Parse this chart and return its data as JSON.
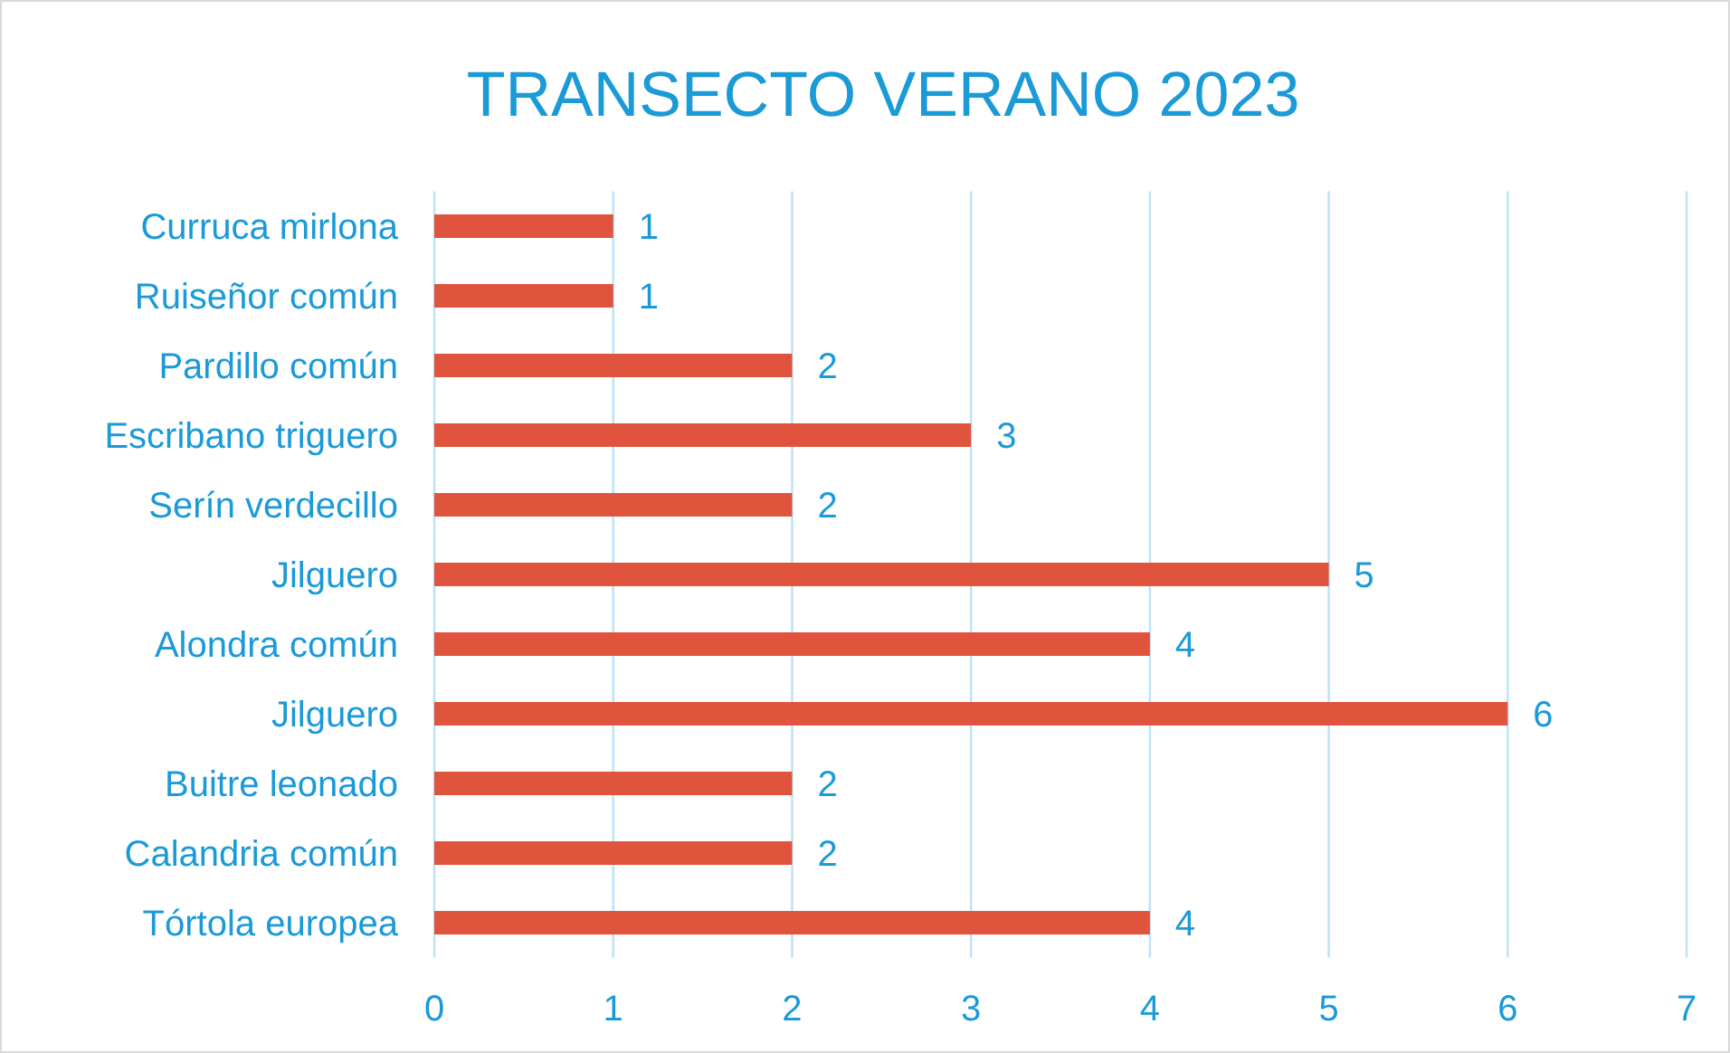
{
  "chart_data": {
    "type": "bar",
    "title": "TRANSECTO VERANO 2023",
    "orientation": "horizontal",
    "categories": [
      "Curruca mirlona",
      "Ruiseñor común",
      "Pardillo común",
      "Escribano triguero",
      "Serín verdecillo",
      "Jilguero",
      "Alondra común",
      "Jilguero",
      "Buitre leonado",
      "Calandria común",
      "Tórtola europea"
    ],
    "values": [
      1,
      1,
      2,
      3,
      2,
      5,
      4,
      6,
      2,
      2,
      4
    ],
    "color": "#e0533d",
    "xlim": [
      0,
      7
    ],
    "xticks": [
      0,
      1,
      2,
      3,
      4,
      5,
      6,
      7
    ],
    "grid": "x",
    "data_labels": true
  }
}
